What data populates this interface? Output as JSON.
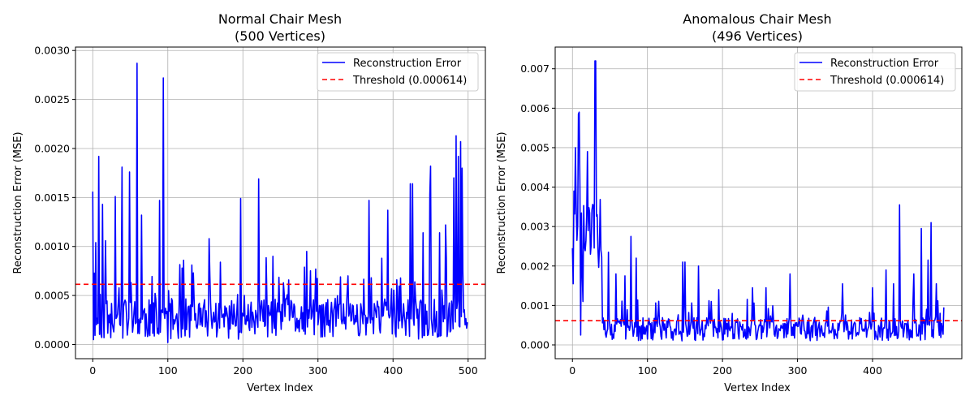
{
  "colors": {
    "error": "#0000ff",
    "threshold": "#ff0000",
    "grid": "#b0b0b0"
  },
  "chart_data": [
    {
      "type": "line",
      "title_line1": "Normal Chair Mesh",
      "title_line2": "(500 Vertices)",
      "xlabel": "Vertex Index",
      "ylabel": "Reconstruction Error (MSE)",
      "xlim": [
        -23,
        523
      ],
      "ylim": [
        -0.000145,
        0.003035
      ],
      "xticks": [
        0,
        100,
        200,
        300,
        400,
        500
      ],
      "xtick_labels": [
        "0",
        "100",
        "200",
        "300",
        "400",
        "500"
      ],
      "yticks": [
        0,
        0.0005,
        0.001,
        0.0015,
        0.002,
        0.0025,
        0.003
      ],
      "ytick_labels": [
        "0.0000",
        "0.0005",
        "0.0010",
        "0.0015",
        "0.0020",
        "0.0025",
        "0.0030"
      ],
      "grid": true,
      "legend_position": "upper right",
      "legend": [
        "Reconstruction Error",
        "Threshold (0.000614)"
      ],
      "threshold": 0.000614,
      "key_points": [
        [
          0,
          0.00156
        ],
        [
          1,
          5e-05
        ],
        [
          4,
          0.00104
        ],
        [
          8,
          0.00192
        ],
        [
          13,
          0.00143
        ],
        [
          17,
          0.00106
        ],
        [
          30,
          0.00151
        ],
        [
          39,
          0.00181
        ],
        [
          49,
          0.00176
        ],
        [
          59,
          0.00287
        ],
        [
          65,
          0.00132
        ],
        [
          89,
          0.00147
        ],
        [
          94,
          0.00272
        ],
        [
          100,
          2e-05
        ],
        [
          119,
          0.00078
        ],
        [
          121,
          0.00086
        ],
        [
          155,
          0.00108
        ],
        [
          170,
          0.00084
        ],
        [
          197,
          0.00149
        ],
        [
          221,
          0.00169
        ],
        [
          240,
          0.0009
        ],
        [
          285,
          0.00095
        ],
        [
          297,
          0.00077
        ],
        [
          330,
          0.00069
        ],
        [
          340,
          0.0007
        ],
        [
          368,
          0.00147
        ],
        [
          385,
          0.00088
        ],
        [
          393,
          0.00137
        ],
        [
          405,
          0.00066
        ],
        [
          423,
          0.00164
        ],
        [
          426,
          0.00164
        ],
        [
          440,
          0.00114
        ],
        [
          449,
          0.00153
        ],
        [
          450,
          0.00182
        ],
        [
          462,
          0.00114
        ],
        [
          470,
          0.00122
        ],
        [
          481,
          0.0017
        ],
        [
          484,
          0.00213
        ],
        [
          487,
          0.00192
        ],
        [
          490,
          0.00207
        ],
        [
          492,
          0.0018
        ],
        [
          493,
          0.00075
        ]
      ],
      "n_points": 500,
      "seed": 11
    },
    {
      "type": "line",
      "title_line1": "Anomalous Chair Mesh",
      "title_line2": "(496 Vertices)",
      "xlabel": "Vertex Index",
      "ylabel": "Reconstruction Error (MSE)",
      "xlim": [
        -23,
        519
      ],
      "ylim": [
        -0.00035,
        0.00755
      ],
      "xticks": [
        0,
        100,
        200,
        300,
        400
      ],
      "xtick_labels": [
        "0",
        "100",
        "200",
        "300",
        "400"
      ],
      "yticks": [
        0,
        0.001,
        0.002,
        0.003,
        0.004,
        0.005,
        0.006,
        0.007
      ],
      "ytick_labels": [
        "0.000",
        "0.001",
        "0.002",
        "0.003",
        "0.004",
        "0.005",
        "0.006",
        "0.007"
      ],
      "grid": true,
      "legend_position": "upper right",
      "legend": [
        "Reconstruction Error",
        "Threshold (0.000614)"
      ],
      "threshold": 0.000614,
      "key_points": [
        [
          0,
          0.00245
        ],
        [
          1,
          0.00155
        ],
        [
          2,
          0.0039
        ],
        [
          4,
          0.005
        ],
        [
          6,
          0.00265
        ],
        [
          8,
          0.00585
        ],
        [
          9,
          0.0059
        ],
        [
          10,
          0.004
        ],
        [
          11,
          0.00025
        ],
        [
          14,
          0.0011
        ],
        [
          20,
          0.0049
        ],
        [
          24,
          0.0023
        ],
        [
          30,
          0.0072
        ],
        [
          31,
          0.0072
        ],
        [
          33,
          0.0033
        ],
        [
          36,
          0.0025
        ],
        [
          48,
          0.00235
        ],
        [
          58,
          0.0018
        ],
        [
          70,
          0.00175
        ],
        [
          78,
          0.00275
        ],
        [
          85,
          0.0022
        ],
        [
          147,
          0.0021
        ],
        [
          150,
          0.0021
        ],
        [
          168,
          0.002
        ],
        [
          185,
          0.0011
        ],
        [
          195,
          0.0014
        ],
        [
          240,
          0.00145
        ],
        [
          258,
          0.00145
        ],
        [
          290,
          0.0018
        ],
        [
          360,
          0.00155
        ],
        [
          400,
          0.00145
        ],
        [
          418,
          0.0019
        ],
        [
          428,
          0.00155
        ],
        [
          436,
          0.00355
        ],
        [
          455,
          0.0018
        ],
        [
          465,
          0.00295
        ],
        [
          474,
          0.00215
        ],
        [
          478,
          0.0031
        ],
        [
          485,
          0.00155
        ],
        [
          490,
          0.0008
        ],
        [
          495,
          0.00095
        ]
      ],
      "n_points": 496,
      "seed": 29
    }
  ]
}
